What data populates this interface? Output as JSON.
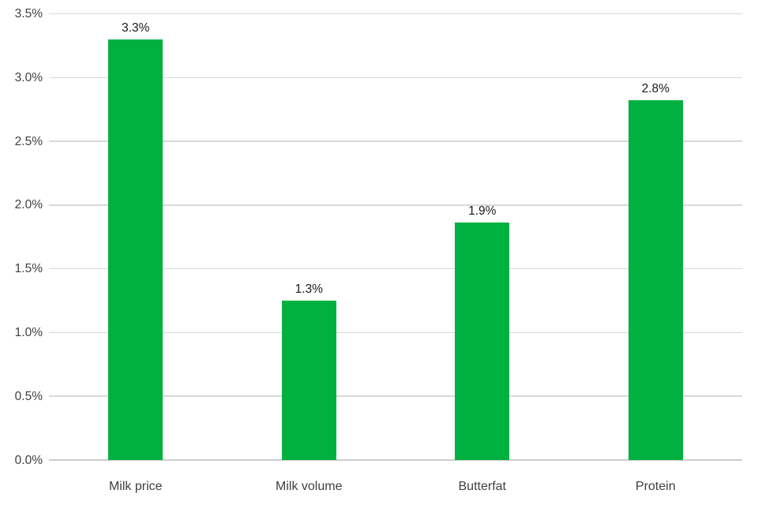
{
  "chart_data": {
    "type": "bar",
    "title": "",
    "xlabel": "",
    "ylabel": "",
    "categories": [
      "Milk price",
      "Milk volume",
      "Butterfat",
      "Protein"
    ],
    "values": [
      3.3,
      1.25,
      1.86,
      2.82
    ],
    "data_labels": [
      "3.3%",
      "1.3%",
      "1.9%",
      "2.8%"
    ],
    "y_ticks": [
      {
        "label": "0.0%",
        "value": 0
      },
      {
        "label": "0.5%",
        "value": 0.5
      },
      {
        "label": "1.0%",
        "value": 1
      },
      {
        "label": "1.5%",
        "value": 1.5
      },
      {
        "label": "2.0%",
        "value": 2
      },
      {
        "label": "2.5%",
        "value": 2.5
      },
      {
        "label": "3.0%",
        "value": 3
      },
      {
        "label": "3.5%",
        "value": 3.5
      }
    ],
    "ylim": [
      0,
      3.5
    ],
    "grid": true,
    "legend": false,
    "colors": {
      "bar": "#00b140",
      "gridline": "#d9d9d9",
      "baseline": "#cccccc",
      "tick_text": "#3f3f3f",
      "data_label_text": "#1a1a1a"
    }
  }
}
